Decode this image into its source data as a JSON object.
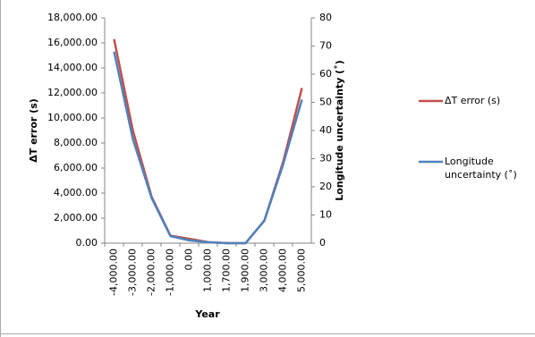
{
  "chart_data": {
    "type": "line",
    "x_label": "Year",
    "y_label": "ΔT error (s)",
    "y2_label": "Longitude uncertainty (˚)",
    "categories": [
      "-4,000.00",
      "-3,000.00",
      "-2,000.00",
      "-1,000.00",
      "0.00",
      "1,000.00",
      "1,700.00",
      "1,900.00",
      "3,000.00",
      "4,000.00",
      "5,000.00"
    ],
    "series": [
      {
        "name": "ΔT error (s)",
        "color": "#c0504d",
        "values": [
          16300,
          9000,
          3700,
          600,
          350,
          80,
          0,
          0,
          1800,
          6500,
          12400
        ]
      },
      {
        "name": "Longitude uncertainty (˚)",
        "color": "#4f81bd",
        "axis": "y2",
        "values": [
          68,
          37,
          16,
          2.5,
          1,
          0.3,
          0,
          0,
          8,
          28,
          51
        ]
      }
    ],
    "ylim": [
      0,
      18000
    ],
    "yticks": [
      {
        "value": 0,
        "label": "0.00"
      },
      {
        "value": 2000,
        "label": "2,000.00"
      },
      {
        "value": 4000,
        "label": "4,000.00"
      },
      {
        "value": 6000,
        "label": "6,000.00"
      },
      {
        "value": 8000,
        "label": "8,000.00"
      },
      {
        "value": 10000,
        "label": "10,000.00"
      },
      {
        "value": 12000,
        "label": "12,000.00"
      },
      {
        "value": 14000,
        "label": "14,000.00"
      },
      {
        "value": 16000,
        "label": "16,000.00"
      },
      {
        "value": 18000,
        "label": "18,000.00"
      }
    ],
    "y2lim": [
      0,
      80
    ],
    "y2ticks": [
      0,
      10,
      20,
      30,
      40,
      50,
      60,
      70,
      80
    ]
  }
}
